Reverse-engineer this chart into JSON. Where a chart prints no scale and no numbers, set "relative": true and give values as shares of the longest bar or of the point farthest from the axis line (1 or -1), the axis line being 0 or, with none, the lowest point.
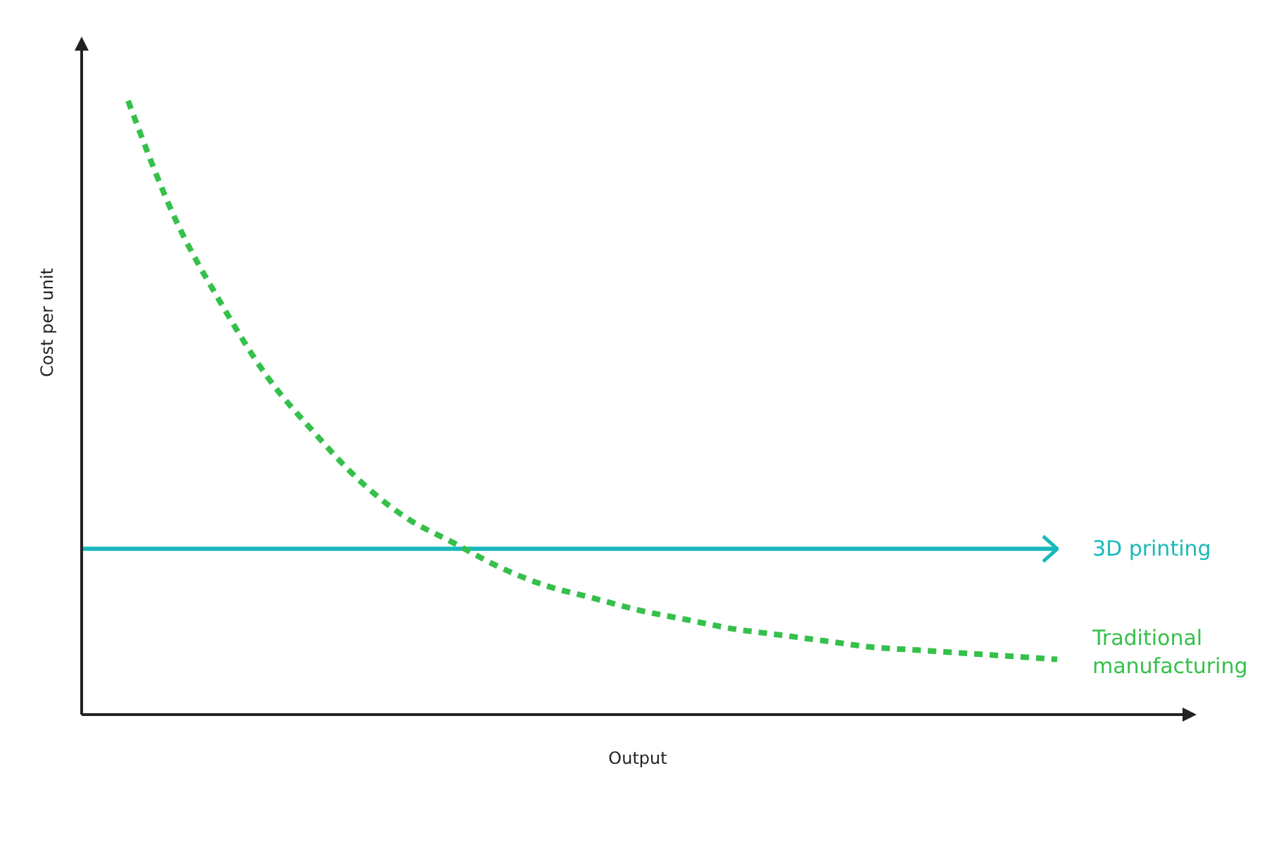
{
  "chart_data": {
    "type": "line",
    "relative": true,
    "xlabel": "Output",
    "ylabel": "Cost per unit",
    "marker": "none",
    "categories": [
      null,
      null,
      null,
      null,
      null,
      null,
      null,
      null,
      null,
      null,
      null,
      null,
      null,
      null,
      null,
      null,
      null,
      null,
      null,
      null,
      null,
      null
    ],
    "series": [
      {
        "name": "3D printing",
        "color": "#19b9bb",
        "line_style": "solid",
        "values": [
          0.27,
          0.27,
          0.27,
          0.27,
          0.27,
          0.27,
          0.27,
          0.27,
          0.27,
          0.27,
          0.27,
          0.27,
          0.27,
          0.27,
          0.27,
          0.27,
          0.27,
          0.27,
          0.27,
          0.27,
          0.27,
          0.27
        ]
      },
      {
        "name": "Traditional manufacturing",
        "color": "#35c04b",
        "line_style": "dashed",
        "values": [
          null,
          1,
          0.81,
          0.67,
          0.55,
          0.46,
          0.38,
          0.32,
          0.28,
          0.24,
          0.21,
          0.19,
          0.17,
          0.155,
          0.14,
          0.13,
          0.12,
          0.11,
          0.105,
          0.1,
          0.095,
          0.09
        ]
      }
    ]
  }
}
